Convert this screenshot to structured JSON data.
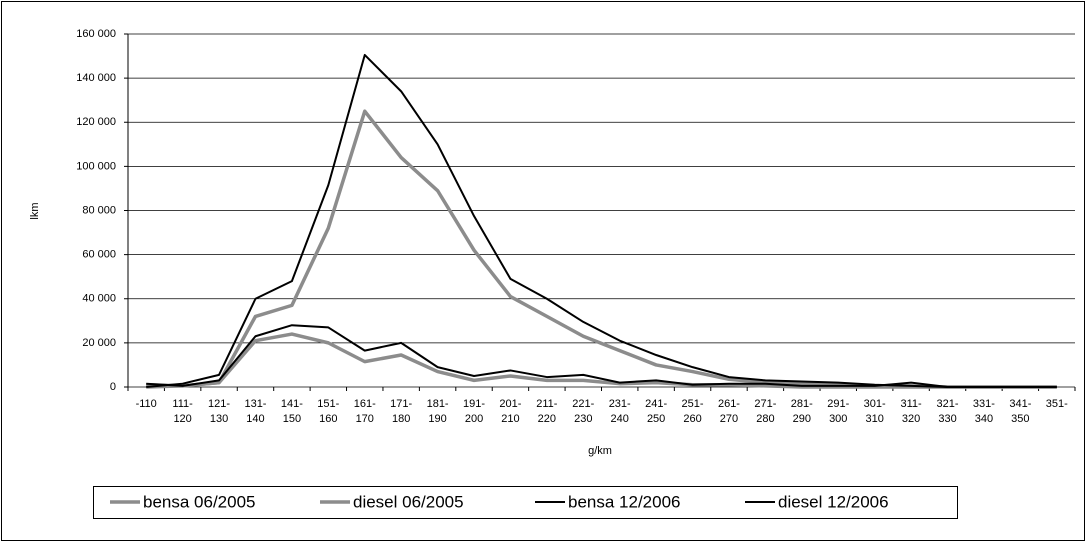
{
  "chart_data": {
    "type": "line",
    "x_label": "g/km",
    "y_label": "lkm",
    "categories": [
      "-110",
      "111-\n120",
      "121-\n130",
      "131-\n140",
      "141-\n150",
      "151-\n160",
      "161-\n170",
      "171-\n180",
      "181-\n190",
      "191-\n200",
      "201-\n210",
      "211-\n220",
      "221-\n230",
      "231-\n240",
      "241-\n250",
      "251-\n260",
      "261-\n270",
      "271-\n280",
      "281-\n290",
      "291-\n300",
      "301-\n310",
      "311-\n320",
      "321-\n330",
      "331-\n340",
      "341-\n350",
      "351-"
    ],
    "series": [
      {
        "name": "bensa 06/2005",
        "color": "#8c8c8c",
        "values": [
          0,
          500,
          2000,
          32000,
          37000,
          72000,
          125000,
          104000,
          89000,
          62000,
          41000,
          32000,
          23000,
          16500,
          10000,
          7000,
          3500,
          2000,
          1500,
          1000,
          500,
          500,
          0,
          0,
          0,
          0
        ]
      },
      {
        "name": "diesel 06/2005",
        "color": "#8c8c8c",
        "values": [
          1000,
          500,
          2000,
          21000,
          24000,
          20000,
          11500,
          14500,
          7000,
          3000,
          5000,
          3000,
          3000,
          1500,
          2000,
          1000,
          1000,
          500,
          0,
          0,
          0,
          0,
          0,
          0,
          0,
          0
        ]
      },
      {
        "name": "bensa 12/2006",
        "color": "#000000",
        "values": [
          0,
          1500,
          5500,
          40000,
          48000,
          91500,
          150500,
          134000,
          110000,
          77500,
          49000,
          40000,
          29500,
          21000,
          14500,
          9000,
          4500,
          3000,
          2500,
          2000,
          1000,
          500,
          0,
          0,
          0,
          0
        ]
      },
      {
        "name": "diesel 12/2006",
        "color": "#000000",
        "values": [
          1500,
          500,
          3000,
          23000,
          28000,
          27000,
          16500,
          20000,
          9000,
          5000,
          7500,
          4500,
          5500,
          2000,
          3000,
          1000,
          1500,
          1500,
          500,
          500,
          500,
          2000,
          0,
          0,
          0,
          0
        ]
      }
    ],
    "ylim": [
      0,
      160000
    ],
    "yticks": [
      0,
      {
        "value": 20000,
        "label": "20 000"
      },
      {
        "value": 40000,
        "label": "40 000"
      },
      {
        "value": 60000,
        "label": "60 000"
      },
      {
        "value": 80000,
        "label": "80 000"
      },
      {
        "value": 100000,
        "label": "100 000"
      },
      {
        "value": 120000,
        "label": "120 000"
      },
      {
        "value": 140000,
        "label": "140 000"
      },
      {
        "value": 160000,
        "label": "160 000"
      }
    ],
    "grid": true
  }
}
